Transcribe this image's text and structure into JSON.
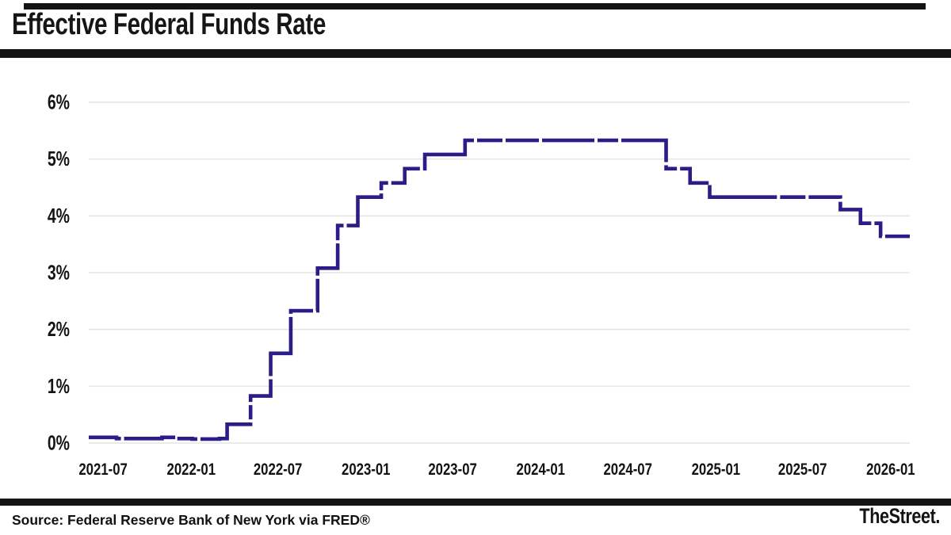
{
  "header": {
    "title": "Effective Federal Funds Rate"
  },
  "footer": {
    "source": "Source: Federal Reserve Bank of New York via FRED®",
    "brand": "TheStreet."
  },
  "colors": {
    "line": "#2b1d87",
    "grid": "#e4e4e4",
    "bars": "#141414",
    "text": "#141414",
    "background": "#ffffff"
  },
  "chart_data": {
    "type": "line",
    "line_style": "step-after-dashed",
    "title": "Effective Federal Funds Rate",
    "xlabel": "",
    "ylabel": "",
    "legend": "none",
    "grid": "horizontal",
    "ylim": [
      0,
      6
    ],
    "x_domain": [
      "2021-06-01",
      "2026-02-10"
    ],
    "y_ticks": [
      {
        "value": 0,
        "label": "0%"
      },
      {
        "value": 1,
        "label": "1%"
      },
      {
        "value": 2,
        "label": "2%"
      },
      {
        "value": 3,
        "label": "3%"
      },
      {
        "value": 4,
        "label": "4%"
      },
      {
        "value": 5,
        "label": "5%"
      },
      {
        "value": 6,
        "label": "6%"
      }
    ],
    "x_ticks": [
      {
        "date": "2021-07-01",
        "label": "2021-07"
      },
      {
        "date": "2022-01-01",
        "label": "2022-01"
      },
      {
        "date": "2022-07-01",
        "label": "2022-07"
      },
      {
        "date": "2023-01-01",
        "label": "2023-01"
      },
      {
        "date": "2023-07-01",
        "label": "2023-07"
      },
      {
        "date": "2024-01-01",
        "label": "2024-01"
      },
      {
        "date": "2024-07-01",
        "label": "2024-07"
      },
      {
        "date": "2025-01-01",
        "label": "2025-01"
      },
      {
        "date": "2025-07-01",
        "label": "2025-07"
      },
      {
        "date": "2026-01-01",
        "label": "2026-01"
      }
    ],
    "series": [
      {
        "name": "Effective Federal Funds Rate (%)",
        "step_points": [
          [
            "2021-06-01",
            0.1
          ],
          [
            "2021-07-29",
            0.08
          ],
          [
            "2021-11-01",
            0.1
          ],
          [
            "2021-12-01",
            0.08
          ],
          [
            "2022-01-03",
            0.07
          ],
          [
            "2022-03-01",
            0.08
          ],
          [
            "2022-03-17",
            0.33
          ],
          [
            "2022-05-05",
            0.83
          ],
          [
            "2022-06-16",
            1.58
          ],
          [
            "2022-07-28",
            2.33
          ],
          [
            "2022-09-22",
            3.08
          ],
          [
            "2022-11-03",
            3.83
          ],
          [
            "2022-12-15",
            4.33
          ],
          [
            "2023-02-02",
            4.58
          ],
          [
            "2023-03-23",
            4.83
          ],
          [
            "2023-05-04",
            5.08
          ],
          [
            "2023-07-27",
            5.33
          ],
          [
            "2024-09-19",
            4.83
          ],
          [
            "2024-11-08",
            4.58
          ],
          [
            "2024-12-19",
            4.33
          ],
          [
            "2025-09-18",
            4.11
          ],
          [
            "2025-10-30",
            3.87
          ],
          [
            "2025-12-11",
            3.64
          ],
          [
            "2026-02-10",
            3.64
          ]
        ]
      }
    ]
  }
}
